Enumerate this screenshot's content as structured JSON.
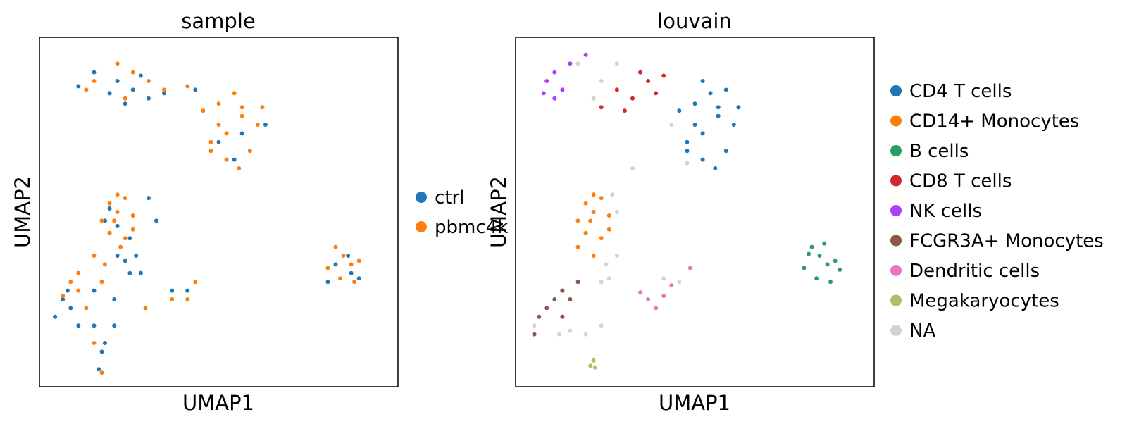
{
  "chart_data": [
    {
      "type": "scatter",
      "title": "sample",
      "xlabel": "UMAP1",
      "ylabel": "UMAP2",
      "xlim": [
        -8,
        15
      ],
      "ylim": [
        -8,
        12
      ],
      "grid": false,
      "legend_position": "right",
      "legend": [
        {
          "label": "ctrl",
          "color": "#1f77b4"
        },
        {
          "label": "pbmc4k",
          "color": "#ff7f0e"
        }
      ],
      "series": [
        {
          "name": "ctrl",
          "color": "#1f77b4",
          "points": [
            [
              -2.0,
              9.0
            ],
            [
              -3.0,
              9.5
            ],
            [
              -2.5,
              8.2
            ],
            [
              -4.5,
              10.0
            ],
            [
              -1.5,
              9.8
            ],
            [
              -3.5,
              8.8
            ],
            [
              -5.5,
              9.2
            ],
            [
              0.0,
              8.8
            ],
            [
              -1.0,
              8.5
            ],
            [
              2.0,
              9.0
            ],
            [
              3.5,
              6.0
            ],
            [
              5.0,
              6.5
            ],
            [
              6.5,
              7.0
            ],
            [
              4.5,
              5.0
            ],
            [
              -3.5,
              2.2
            ],
            [
              -3.0,
              -0.5
            ],
            [
              -3.8,
              1.5
            ],
            [
              -6.5,
              -3.0
            ],
            [
              -7.0,
              -4.0
            ],
            [
              -6.2,
              -2.5
            ],
            [
              -4.5,
              -2.5
            ],
            [
              -3.8,
              -5.5
            ],
            [
              -4.5,
              -4.5
            ],
            [
              -4.0,
              -6.0
            ],
            [
              -4.2,
              -7.0
            ],
            [
              -3.2,
              -3.0
            ],
            [
              -2.2,
              -1.5
            ],
            [
              -1.5,
              -1.5
            ],
            [
              0.5,
              -2.5
            ],
            [
              1.5,
              -2.5
            ],
            [
              -0.5,
              1.5
            ],
            [
              -1.0,
              2.8
            ],
            [
              -2.2,
              0.5
            ],
            [
              -1.8,
              -0.5
            ],
            [
              12.0,
              -1.5
            ],
            [
              11.8,
              -0.5
            ],
            [
              10.5,
              -2.0
            ],
            [
              11.0,
              -1.0
            ],
            [
              12.5,
              -1.8
            ],
            [
              -1.5,
              -1.5
            ],
            [
              -5.5,
              -4.5
            ],
            [
              -6.0,
              -3.5
            ],
            [
              -3.2,
              -4.5
            ],
            [
              -2.5,
              -0.8
            ],
            [
              -3.0,
              1.2
            ]
          ]
        },
        {
          "name": "pbmc4k",
          "color": "#ff7f0e",
          "points": [
            [
              3.5,
              8.2
            ],
            [
              4.0,
              6.5
            ],
            [
              5.0,
              7.5
            ],
            [
              3.0,
              6.0
            ],
            [
              4.5,
              8.8
            ],
            [
              6.0,
              7.0
            ],
            [
              5.5,
              5.5
            ],
            [
              4.0,
              5.0
            ],
            [
              3.5,
              7.0
            ],
            [
              5.0,
              8.0
            ],
            [
              -4.5,
              9.5
            ],
            [
              -3.0,
              10.5
            ],
            [
              -1.0,
              9.5
            ],
            [
              -2.0,
              10.0
            ],
            [
              0.0,
              9.0
            ],
            [
              1.5,
              9.2
            ],
            [
              -5.0,
              9.0
            ],
            [
              -2.5,
              8.5
            ],
            [
              -3.5,
              2.5
            ],
            [
              -3.0,
              2.0
            ],
            [
              -4.0,
              1.5
            ],
            [
              -2.0,
              1.8
            ],
            [
              -3.5,
              0.8
            ],
            [
              -2.5,
              0.5
            ],
            [
              -3.0,
              3.0
            ],
            [
              -4.5,
              -0.5
            ],
            [
              -5.5,
              -1.5
            ],
            [
              -6.5,
              -2.8
            ],
            [
              -4.0,
              -2.0
            ],
            [
              -5.0,
              -3.5
            ],
            [
              -4.5,
              -5.5
            ],
            [
              -4.0,
              -7.2
            ],
            [
              -2.8,
              0.0
            ],
            [
              -1.2,
              -3.5
            ],
            [
              0.5,
              -3.0
            ],
            [
              1.5,
              -3.0
            ],
            [
              2.0,
              -2.0
            ],
            [
              11.5,
              -0.5
            ],
            [
              12.0,
              -1.0
            ],
            [
              11.0,
              0.0
            ],
            [
              12.5,
              -0.8
            ],
            [
              11.3,
              -1.8
            ],
            [
              10.5,
              -1.2
            ],
            [
              12.2,
              -2.0
            ],
            [
              -2.5,
              2.8
            ],
            [
              -6.0,
              -2.0
            ],
            [
              -5.5,
              -2.5
            ],
            [
              -3.8,
              -1.0
            ],
            [
              -3.2,
              1.5
            ],
            [
              -2.0,
              1.0
            ],
            [
              2.5,
              7.8
            ],
            [
              3.0,
              5.5
            ],
            [
              6.3,
              8.0
            ],
            [
              4.8,
              4.5
            ]
          ]
        }
      ]
    },
    {
      "type": "scatter",
      "title": "louvain",
      "xlabel": "UMAP1",
      "ylabel": "UMAP2",
      "xlim": [
        -8,
        15
      ],
      "ylim": [
        -8,
        12
      ],
      "grid": false,
      "legend_position": "right",
      "legend": [
        {
          "label": "CD4 T cells",
          "color": "#1f77b4"
        },
        {
          "label": "CD14+ Monocytes",
          "color": "#ff7f0e"
        },
        {
          "label": "B cells",
          "color": "#279e68"
        },
        {
          "label": "CD8 T cells",
          "color": "#d62728"
        },
        {
          "label": "NK cells",
          "color": "#aa40fc"
        },
        {
          "label": "FCGR3A+ Monocytes",
          "color": "#8c564b"
        },
        {
          "label": "Dendritic cells",
          "color": "#e377c2"
        },
        {
          "label": "Megakaryocytes",
          "color": "#b5bd61"
        },
        {
          "label": "NA",
          "color": "#d3d3d3"
        }
      ],
      "series": [
        {
          "name": "CD4 T cells",
          "color": "#1f77b4",
          "points": [
            [
              3.5,
              8.2
            ],
            [
              4.0,
              6.5
            ],
            [
              5.0,
              7.5
            ],
            [
              3.0,
              6.0
            ],
            [
              4.5,
              8.8
            ],
            [
              6.0,
              7.0
            ],
            [
              5.5,
              5.5
            ],
            [
              4.0,
              5.0
            ],
            [
              3.5,
              7.0
            ],
            [
              5.0,
              8.0
            ],
            [
              2.5,
              7.8
            ],
            [
              3.0,
              5.5
            ],
            [
              6.3,
              8.0
            ],
            [
              4.8,
              4.5
            ],
            [
              4.0,
              9.5
            ],
            [
              5.5,
              9.0
            ]
          ]
        },
        {
          "name": "CD14+ Monocytes",
          "color": "#ff7f0e",
          "points": [
            [
              -3.5,
              2.5
            ],
            [
              -3.0,
              2.0
            ],
            [
              -4.0,
              1.5
            ],
            [
              -2.0,
              1.8
            ],
            [
              -3.5,
              0.8
            ],
            [
              -2.5,
              0.5
            ],
            [
              -3.0,
              3.0
            ],
            [
              -2.5,
              2.8
            ],
            [
              -3.2,
              1.5
            ],
            [
              -2.0,
              1.0
            ],
            [
              -4.0,
              0.0
            ],
            [
              -3.0,
              -0.5
            ]
          ]
        },
        {
          "name": "B cells",
          "color": "#279e68",
          "points": [
            [
              11.5,
              -0.5
            ],
            [
              12.0,
              -1.0
            ],
            [
              11.0,
              0.0
            ],
            [
              12.5,
              -0.8
            ],
            [
              11.3,
              -1.8
            ],
            [
              10.5,
              -1.2
            ],
            [
              12.2,
              -2.0
            ],
            [
              11.8,
              0.2
            ],
            [
              10.8,
              -0.4
            ],
            [
              12.8,
              -1.3
            ]
          ]
        },
        {
          "name": "CD8 T cells",
          "color": "#d62728",
          "points": [
            [
              -1.5,
              9.0
            ],
            [
              -0.5,
              8.5
            ],
            [
              0.5,
              9.5
            ],
            [
              1.0,
              8.8
            ],
            [
              -2.5,
              8.0
            ],
            [
              0.0,
              10.0
            ],
            [
              1.5,
              9.8
            ],
            [
              -1.0,
              7.8
            ]
          ]
        },
        {
          "name": "NK cells",
          "color": "#aa40fc",
          "points": [
            [
              -6.0,
              9.5
            ],
            [
              -5.5,
              10.0
            ],
            [
              -5.0,
              9.0
            ],
            [
              -6.2,
              8.8
            ],
            [
              -4.5,
              10.5
            ],
            [
              -3.5,
              11.0
            ],
            [
              -5.5,
              8.5
            ]
          ]
        },
        {
          "name": "FCGR3A+ Monocytes",
          "color": "#8c564b",
          "points": [
            [
              -5.5,
              -3.0
            ],
            [
              -6.0,
              -3.5
            ],
            [
              -5.0,
              -2.5
            ],
            [
              -6.5,
              -4.0
            ],
            [
              -5.0,
              -4.0
            ],
            [
              -4.5,
              -3.0
            ],
            [
              -6.8,
              -5.0
            ],
            [
              -4.0,
              -2.0
            ]
          ]
        },
        {
          "name": "Dendritic cells",
          "color": "#e377c2",
          "points": [
            [
              0.5,
              -3.0
            ],
            [
              1.0,
              -3.5
            ],
            [
              1.5,
              -2.8
            ],
            [
              0.0,
              -2.6
            ],
            [
              2.0,
              -2.2
            ],
            [
              3.2,
              -1.2
            ]
          ]
        },
        {
          "name": "Megakaryocytes",
          "color": "#b5bd61",
          "points": [
            [
              -3.0,
              -6.5
            ],
            [
              -3.2,
              -6.8
            ],
            [
              -2.9,
              -6.9
            ]
          ]
        },
        {
          "name": "NA",
          "color": "#d3d3d3",
          "points": [
            [
              -2.5,
              9.5
            ],
            [
              -3.0,
              8.5
            ],
            [
              -4.0,
              10.5
            ],
            [
              -1.5,
              10.5
            ],
            [
              -2.2,
              -1.0
            ],
            [
              -2.0,
              -1.8
            ],
            [
              -1.5,
              -0.5
            ],
            [
              -2.5,
              -2.0
            ],
            [
              -3.5,
              -5.0
            ],
            [
              -2.5,
              -4.5
            ],
            [
              -6.8,
              -4.5
            ],
            [
              -5.2,
              -5.0
            ],
            [
              -4.5,
              -4.8
            ],
            [
              1.5,
              -1.8
            ],
            [
              2.5,
              -2.0
            ],
            [
              -1.5,
              2.0
            ],
            [
              -1.8,
              3.0
            ],
            [
              -0.5,
              4.5
            ],
            [
              2.0,
              7.0
            ],
            [
              3.0,
              4.8
            ]
          ]
        }
      ]
    }
  ]
}
